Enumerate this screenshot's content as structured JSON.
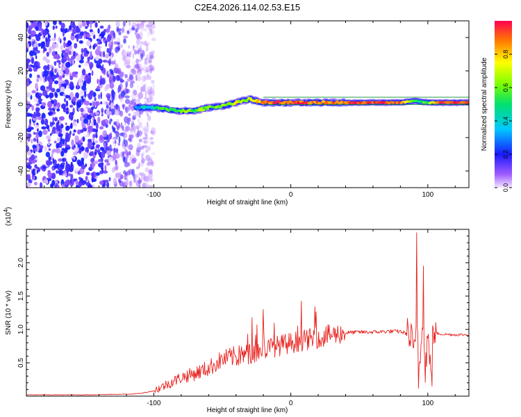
{
  "title": "C2E4.2026.114.02.53.E15",
  "chart_data": [
    {
      "type": "heatmap",
      "title": "C2E4.2026.114.02.53.E15",
      "xlabel": "Height of straight line (km)",
      "ylabel": "Frequency (Hz)",
      "xlim": [
        -193,
        130
      ],
      "ylim": [
        -50,
        50
      ],
      "xticks": [
        -100,
        0,
        100
      ],
      "xtick_labels": [
        "-100",
        "0",
        "100"
      ],
      "yticks": [
        -40,
        -20,
        0,
        20,
        40
      ],
      "ytick_labels": [
        "-40",
        "-20",
        "0",
        "20",
        "40"
      ],
      "colorbar": {
        "label": "Normalized spectral amplitude",
        "range": [
          0,
          1
        ],
        "ticks": [
          0.0,
          0.2,
          0.4,
          0.6,
          0.8
        ],
        "tick_labels": [
          "0.0",
          "0.2",
          "0.4",
          "0.6",
          "0.8"
        ],
        "colormap": "rainbow (purple to red)"
      },
      "noise_region": {
        "x_range": [
          -193,
          -100
        ],
        "freq_range": [
          -50,
          50
        ],
        "amplitude": "low (0.0-0.2)"
      },
      "signal_band": {
        "x": [
          -113,
          -100,
          -90,
          -80,
          -70,
          -60,
          -50,
          -40,
          -30,
          -20,
          -10,
          0,
          10,
          20,
          40,
          60,
          80,
          90,
          100,
          110,
          130
        ],
        "center_freq": [
          -2,
          -2,
          -3,
          -4,
          -4,
          -2,
          -1,
          1,
          3,
          1,
          1,
          1,
          1,
          1,
          1,
          1,
          1,
          2,
          1,
          1,
          1
        ],
        "amplitude": [
          0.35,
          0.45,
          0.55,
          0.6,
          0.6,
          0.62,
          0.65,
          0.7,
          0.7,
          0.85,
          0.9,
          0.9,
          0.92,
          0.88,
          0.9,
          0.92,
          0.9,
          0.5,
          0.6,
          0.95,
          0.95
        ]
      }
    },
    {
      "type": "line",
      "xlabel": "Height of straight line (km)",
      "ylabel": "SNR (10 * v/v)",
      "yscale_label": "(x10",
      "yscale_exp": "4",
      "yscale_close": ")",
      "xlim": [
        -193,
        130
      ],
      "ylim": [
        0,
        2.5
      ],
      "xticks": [
        -100,
        0,
        100
      ],
      "xtick_labels": [
        "-100",
        "0",
        "100"
      ],
      "yticks": [
        0.5,
        1.0,
        1.5,
        2.0
      ],
      "ytick_labels": [
        "0.5",
        "1.0",
        "1.5",
        "2.0"
      ],
      "series": [
        {
          "name": "SNR",
          "color": "#e8201c",
          "x": [
            -193,
            -150,
            -120,
            -110,
            -100,
            -90,
            -80,
            -70,
            -60,
            -50,
            -40,
            -30,
            -20,
            -10,
            0,
            10,
            20,
            30,
            40,
            50,
            60,
            70,
            80,
            85,
            88,
            90,
            92,
            94,
            96,
            98,
            100,
            102,
            104,
            110,
            120,
            130
          ],
          "y": [
            0.02,
            0.02,
            0.03,
            0.04,
            0.08,
            0.18,
            0.28,
            0.34,
            0.42,
            0.55,
            0.6,
            0.63,
            0.7,
            0.75,
            0.8,
            0.84,
            0.88,
            0.92,
            0.95,
            0.96,
            0.96,
            0.97,
            0.97,
            0.93,
            0.85,
            0.6,
            1.1,
            0.5,
            1.3,
            0.4,
            0.9,
            0.35,
            0.95,
            0.93,
            0.92,
            0.92
          ],
          "peaks": [
            [
              -20,
              1.3
            ],
            [
              5,
              1.05
            ],
            [
              92,
              2.45
            ],
            [
              97,
              1.95
            ],
            [
              103,
              1.8
            ],
            [
              93,
              0.12
            ],
            [
              103,
              0.15
            ]
          ]
        }
      ]
    }
  ]
}
